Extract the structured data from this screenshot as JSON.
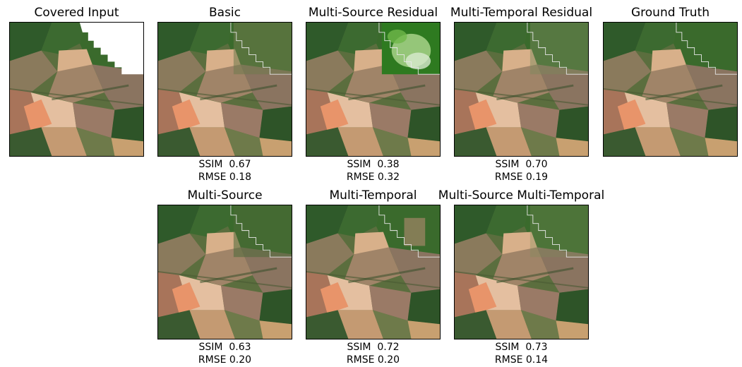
{
  "panels": [
    {
      "title": "Covered Input"
    },
    {
      "title": "Basic",
      "ssim": "SSIM  0.67",
      "rmse": "RMSE 0.18"
    },
    {
      "title": "Multi-Source Residual",
      "ssim": "SSIM  0.38",
      "rmse": "RMSE 0.32"
    },
    {
      "title": "Multi-Temporal Residual",
      "ssim": "SSIM  0.70",
      "rmse": "RMSE 0.19"
    },
    {
      "title": "Ground Truth"
    },
    {
      "title": "Multi-Source",
      "ssim": "SSIM  0.63",
      "rmse": "RMSE 0.20"
    },
    {
      "title": "Multi-Temporal",
      "ssim": "SSIM  0.72",
      "rmse": "RMSE 0.20"
    },
    {
      "title": "Multi-Source Multi-Temporal",
      "ssim": "SSIM  0.73",
      "rmse": "RMSE 0.14"
    }
  ]
}
